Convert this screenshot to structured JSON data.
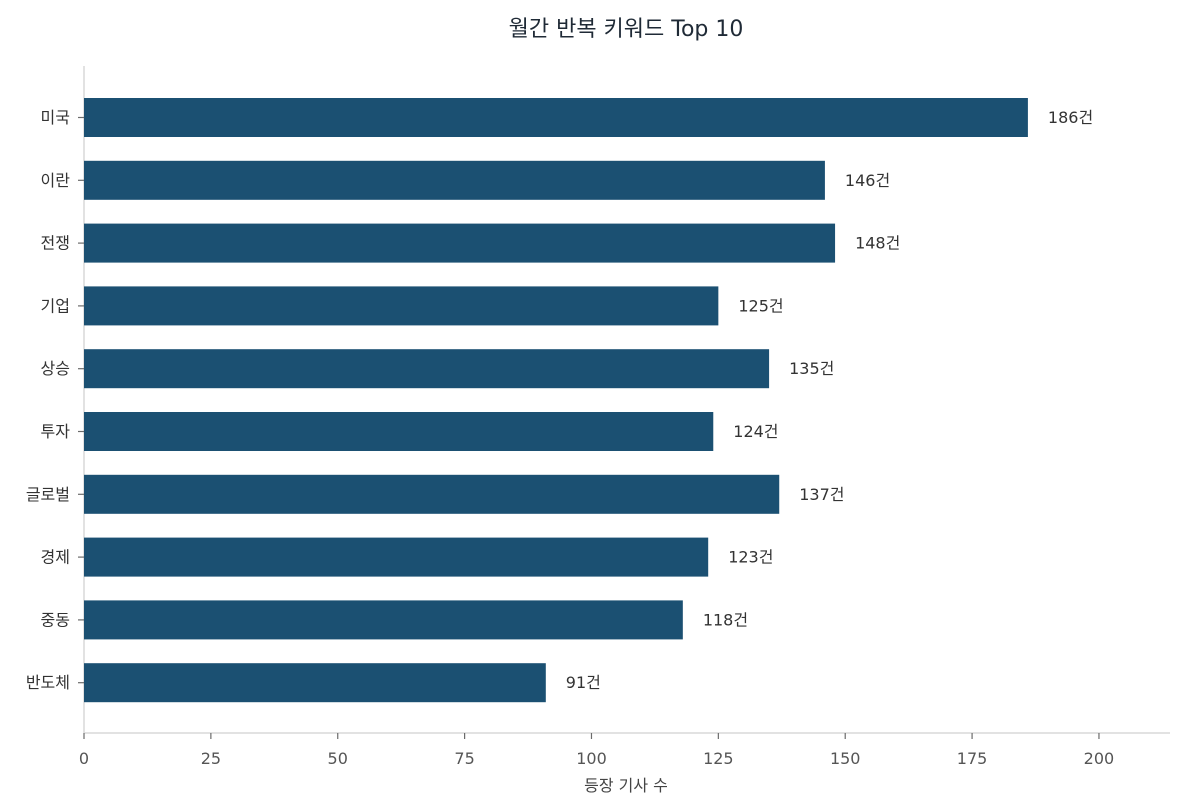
{
  "chart_data": {
    "type": "bar",
    "orientation": "horizontal",
    "title": "월간 반복 키워드 Top 10",
    "xlabel": "등장 기사 수",
    "ylabel": "",
    "categories": [
      "미국",
      "이란",
      "전쟁",
      "기업",
      "상승",
      "투자",
      "글로벌",
      "경제",
      "중동",
      "반도체"
    ],
    "values": [
      186,
      146,
      148,
      125,
      135,
      124,
      137,
      123,
      118,
      91
    ],
    "data_labels": [
      "186건",
      "146건",
      "148건",
      "125건",
      "135건",
      "124건",
      "137건",
      "123건",
      "118건",
      "91건"
    ],
    "xlim": [
      0,
      214
    ],
    "x_ticks": [
      0,
      25,
      50,
      75,
      100,
      125,
      150,
      175,
      200
    ],
    "grid": false,
    "legend": "none",
    "bar_color": "#1b5072"
  }
}
